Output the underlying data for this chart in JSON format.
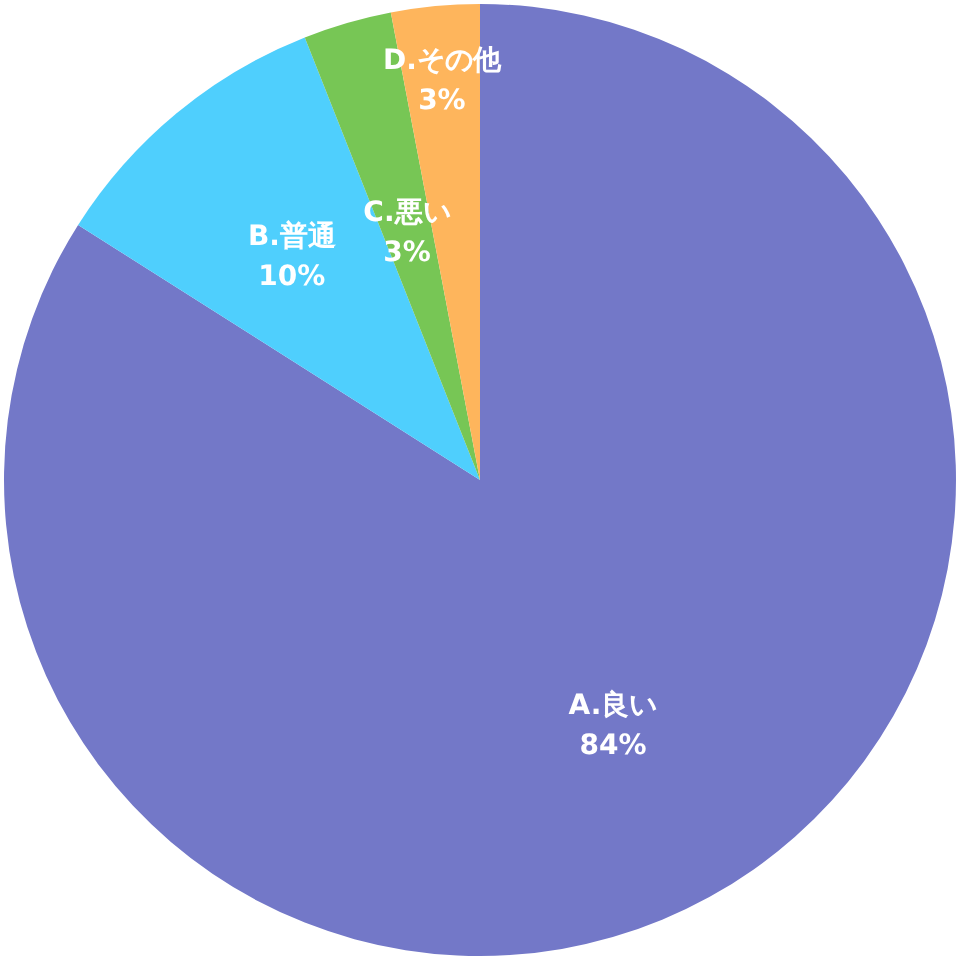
{
  "chart_data": {
    "type": "pie",
    "categories": [
      "A.良い",
      "B.普通",
      "C.悪い",
      "D.その他"
    ],
    "values": [
      84,
      10,
      3,
      3
    ],
    "colors": [
      "#7378c8",
      "#4fcffd",
      "#77c655",
      "#feb55c"
    ],
    "value_labels": [
      "84%",
      "10%",
      "3%",
      "3%"
    ],
    "legend": false
  }
}
